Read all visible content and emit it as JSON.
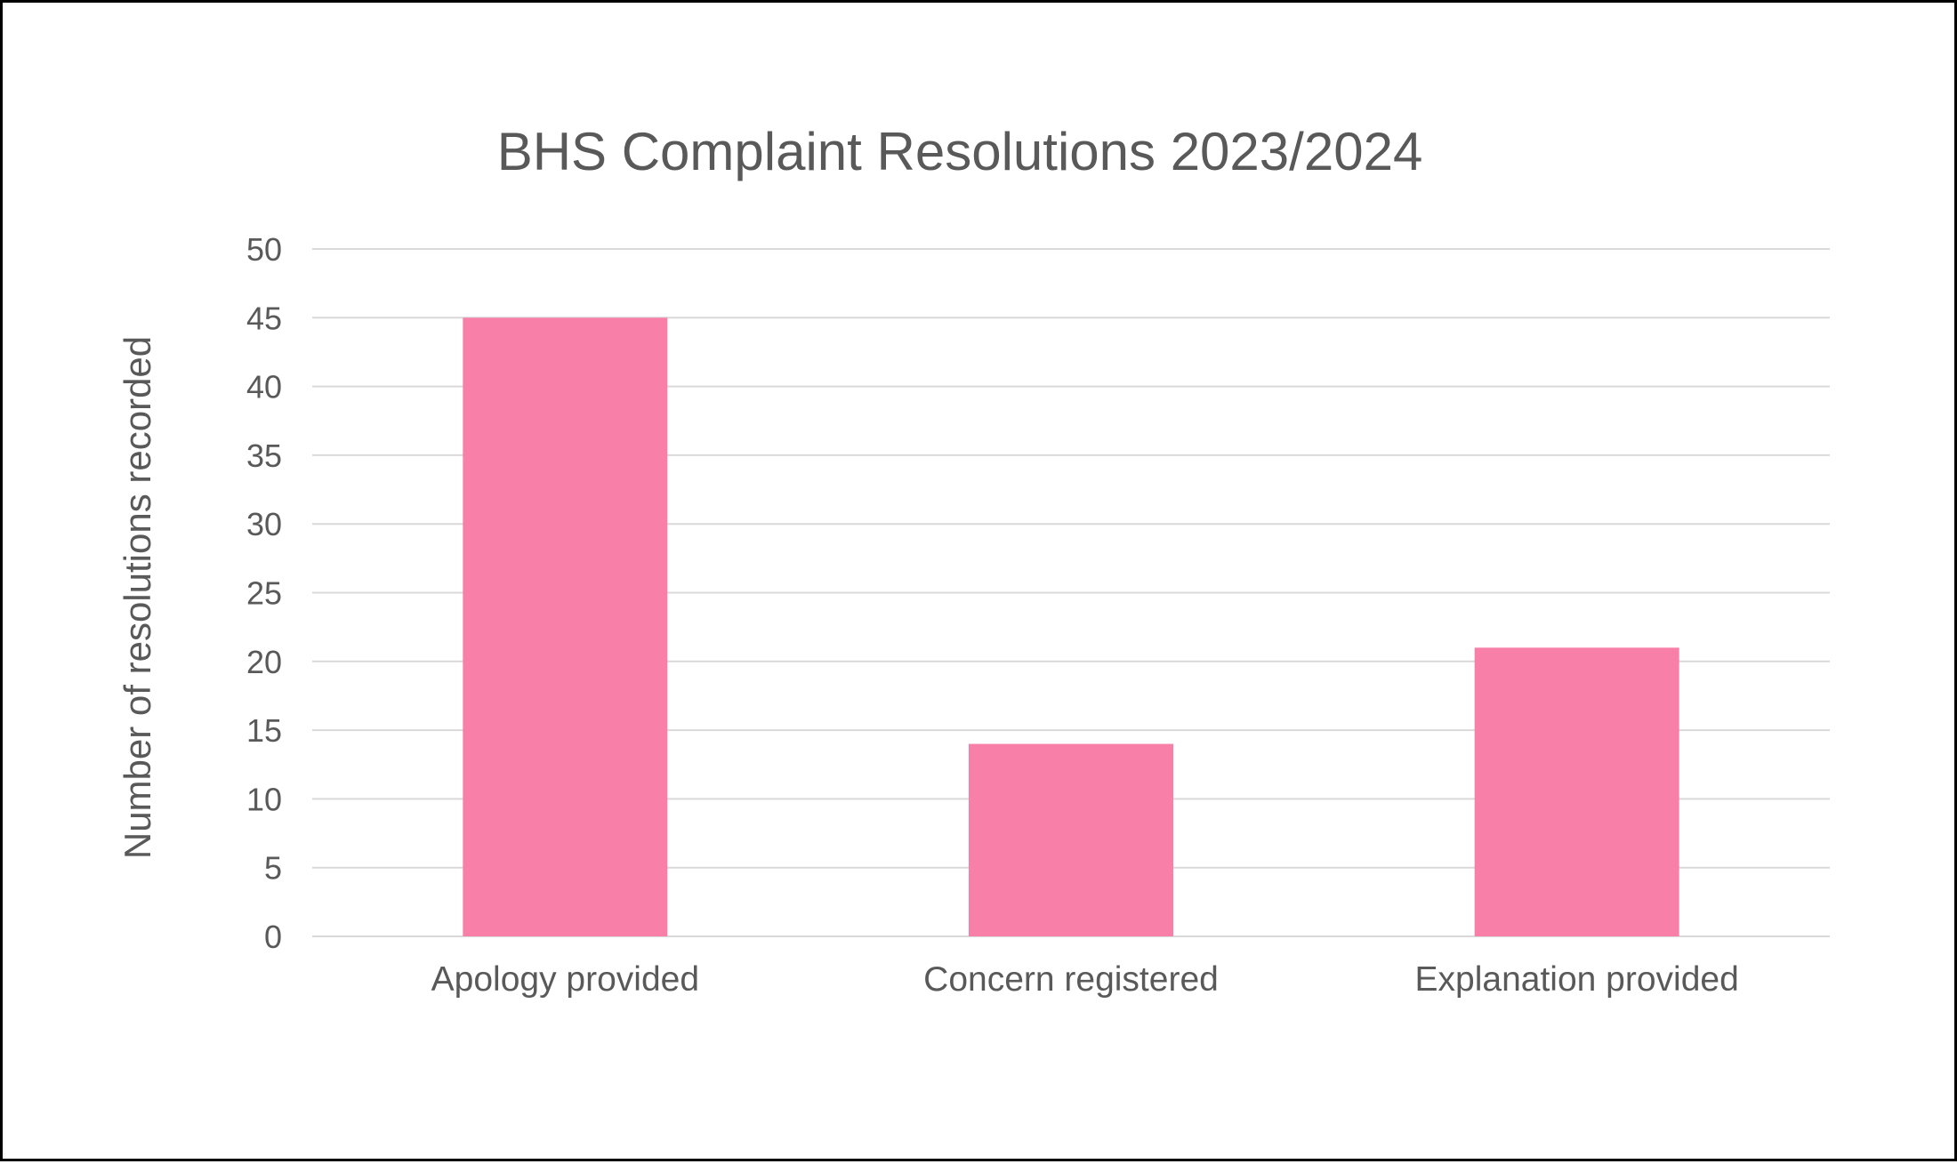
{
  "chart_data": {
    "type": "bar",
    "title": "BHS Complaint Resolutions 2023/2024",
    "xlabel": "",
    "ylabel": "Number of resolutions recorded",
    "categories": [
      "Apology provided",
      "Concern registered",
      "Explanation provided"
    ],
    "values": [
      45,
      14,
      21
    ],
    "ylim": [
      0,
      50
    ],
    "ytick_step": 5,
    "yticks": [
      "0",
      "5",
      "10",
      "15",
      "20",
      "25",
      "30",
      "35",
      "40",
      "45",
      "50"
    ],
    "grid": true,
    "legend": "none",
    "bar_color": "#F77FA8",
    "grid_color": "#D9D9D9",
    "text_color": "#595959"
  }
}
